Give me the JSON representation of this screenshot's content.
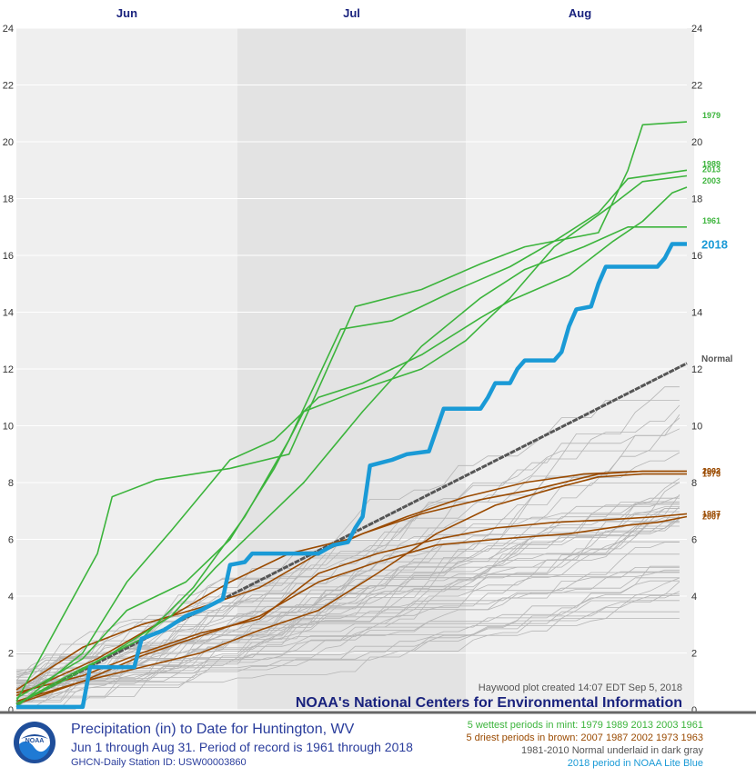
{
  "chart_data": {
    "type": "line",
    "title": "Precipitation (in) to Date for Huntington, WV",
    "subtitle": "Jun 1 through Aug 31. Period of record is 1961 through 2018",
    "station": "GHCN-Daily Station ID: USW00003860",
    "months": [
      "Jun",
      "Jul",
      "Aug"
    ],
    "ylim": [
      0,
      24
    ],
    "yticks": [
      "0",
      "2",
      "4",
      "6",
      "8",
      "10",
      "12",
      "14",
      "16",
      "18",
      "20",
      "22",
      "24"
    ],
    "x_range_days": [
      1,
      92
    ],
    "grid": true,
    "colors": {
      "wettest": "#3cb43c",
      "driest": "#9a4a00",
      "normal": "#555555",
      "current": "#1a9ad6",
      "background_year": "#b5b5b5",
      "title": "#1a237e"
    },
    "normal": {
      "label": "Normal",
      "points": [
        [
          1,
          0.2
        ],
        [
          92,
          12.2
        ]
      ]
    },
    "current_year": {
      "name": "2018",
      "points": [
        [
          1,
          0.1
        ],
        [
          10,
          0.1
        ],
        [
          11,
          1.5
        ],
        [
          17,
          1.5
        ],
        [
          18,
          2.5
        ],
        [
          21,
          2.8
        ],
        [
          24,
          3.3
        ],
        [
          26,
          3.5
        ],
        [
          29,
          3.9
        ],
        [
          30,
          5.1
        ],
        [
          32,
          5.2
        ],
        [
          33,
          5.5
        ],
        [
          42,
          5.5
        ],
        [
          44,
          5.8
        ],
        [
          46,
          5.9
        ],
        [
          47,
          6.4
        ],
        [
          48,
          6.8
        ],
        [
          49,
          8.6
        ],
        [
          52,
          8.8
        ],
        [
          54,
          9.0
        ],
        [
          57,
          9.1
        ],
        [
          59,
          10.6
        ],
        [
          64,
          10.6
        ],
        [
          65,
          11.0
        ],
        [
          66,
          11.5
        ],
        [
          68,
          11.5
        ],
        [
          69,
          12.0
        ],
        [
          70,
          12.3
        ],
        [
          74,
          12.3
        ],
        [
          75,
          12.6
        ],
        [
          76,
          13.5
        ],
        [
          77,
          14.1
        ],
        [
          79,
          14.2
        ],
        [
          80,
          15.0
        ],
        [
          81,
          15.6
        ],
        [
          88,
          15.6
        ],
        [
          89,
          15.9
        ],
        [
          90,
          16.4
        ],
        [
          92,
          16.4
        ]
      ]
    },
    "wettest": [
      {
        "name": "1979",
        "points": [
          [
            1,
            0.3
          ],
          [
            12,
            5.5
          ],
          [
            14,
            7.5
          ],
          [
            20,
            8.1
          ],
          [
            30,
            8.5
          ],
          [
            38,
            9.0
          ],
          [
            47,
            14.2
          ],
          [
            56,
            14.8
          ],
          [
            64,
            15.7
          ],
          [
            70,
            16.3
          ],
          [
            80,
            16.8
          ],
          [
            84,
            19.0
          ],
          [
            86,
            20.6
          ],
          [
            92,
            20.7
          ]
        ]
      },
      {
        "name": "1989",
        "points": [
          [
            1,
            0.2
          ],
          [
            8,
            1.2
          ],
          [
            18,
            2.5
          ],
          [
            25,
            4.3
          ],
          [
            32,
            6.8
          ],
          [
            38,
            9.5
          ],
          [
            45,
            13.4
          ],
          [
            52,
            13.7
          ],
          [
            60,
            14.7
          ],
          [
            68,
            15.6
          ],
          [
            74,
            16.5
          ],
          [
            80,
            17.5
          ],
          [
            84,
            18.7
          ],
          [
            92,
            19.0
          ]
        ]
      },
      {
        "name": "2013",
        "points": [
          [
            1,
            0.4
          ],
          [
            10,
            1.8
          ],
          [
            16,
            3.5
          ],
          [
            24,
            4.5
          ],
          [
            30,
            6.0
          ],
          [
            36,
            8.5
          ],
          [
            40,
            10.5
          ],
          [
            48,
            11.3
          ],
          [
            56,
            12.0
          ],
          [
            62,
            13.0
          ],
          [
            68,
            14.5
          ],
          [
            74,
            16.3
          ],
          [
            82,
            17.8
          ],
          [
            86,
            18.6
          ],
          [
            92,
            18.8
          ]
        ]
      },
      {
        "name": "2003",
        "points": [
          [
            1,
            0.1
          ],
          [
            10,
            2.0
          ],
          [
            16,
            4.5
          ],
          [
            22,
            6.3
          ],
          [
            30,
            8.8
          ],
          [
            36,
            9.5
          ],
          [
            42,
            11.0
          ],
          [
            48,
            11.5
          ],
          [
            56,
            12.5
          ],
          [
            64,
            13.8
          ],
          [
            68,
            14.4
          ],
          [
            76,
            15.3
          ],
          [
            82,
            16.5
          ],
          [
            86,
            17.2
          ],
          [
            90,
            18.2
          ],
          [
            92,
            18.4
          ]
        ]
      },
      {
        "name": "1961",
        "points": [
          [
            1,
            0.2
          ],
          [
            8,
            1.1
          ],
          [
            14,
            2.0
          ],
          [
            22,
            3.3
          ],
          [
            28,
            5.0
          ],
          [
            34,
            6.5
          ],
          [
            40,
            8.0
          ],
          [
            48,
            10.5
          ],
          [
            56,
            12.8
          ],
          [
            64,
            14.5
          ],
          [
            70,
            15.5
          ],
          [
            78,
            16.3
          ],
          [
            84,
            17.0
          ],
          [
            92,
            17.0
          ]
        ]
      }
    ],
    "driest": [
      {
        "name": "2007",
        "points": [
          [
            1,
            0.3
          ],
          [
            10,
            1.0
          ],
          [
            18,
            1.9
          ],
          [
            26,
            2.6
          ],
          [
            34,
            3.3
          ],
          [
            42,
            4.5
          ],
          [
            50,
            5.2
          ],
          [
            58,
            5.8
          ],
          [
            66,
            6.0
          ],
          [
            76,
            6.2
          ],
          [
            84,
            6.5
          ],
          [
            88,
            6.6
          ],
          [
            92,
            6.8
          ]
        ]
      },
      {
        "name": "1987",
        "points": [
          [
            1,
            0.6
          ],
          [
            10,
            1.2
          ],
          [
            18,
            2.0
          ],
          [
            26,
            2.7
          ],
          [
            34,
            3.2
          ],
          [
            42,
            4.8
          ],
          [
            50,
            5.5
          ],
          [
            58,
            6.0
          ],
          [
            66,
            6.4
          ],
          [
            74,
            6.6
          ],
          [
            82,
            6.7
          ],
          [
            88,
            6.8
          ],
          [
            92,
            6.9
          ]
        ]
      },
      {
        "name": "2002",
        "points": [
          [
            1,
            0.5
          ],
          [
            12,
            1.8
          ],
          [
            20,
            3.0
          ],
          [
            30,
            4.5
          ],
          [
            38,
            5.5
          ],
          [
            46,
            6.0
          ],
          [
            54,
            6.8
          ],
          [
            62,
            7.5
          ],
          [
            70,
            8.0
          ],
          [
            78,
            8.3
          ],
          [
            86,
            8.4
          ],
          [
            92,
            8.4
          ]
        ]
      },
      {
        "name": "1973",
        "points": [
          [
            1,
            0.2
          ],
          [
            10,
            1.0
          ],
          [
            18,
            1.5
          ],
          [
            26,
            2.0
          ],
          [
            34,
            2.8
          ],
          [
            42,
            3.5
          ],
          [
            50,
            4.8
          ],
          [
            58,
            6.2
          ],
          [
            66,
            7.2
          ],
          [
            74,
            7.8
          ],
          [
            80,
            8.2
          ],
          [
            86,
            8.3
          ],
          [
            92,
            8.3
          ]
        ]
      },
      {
        "name": "1963",
        "points": [
          [
            1,
            0.7
          ],
          [
            10,
            2.2
          ],
          [
            18,
            3.0
          ],
          [
            26,
            3.6
          ],
          [
            34,
            4.3
          ],
          [
            42,
            5.5
          ],
          [
            48,
            6.2
          ],
          [
            56,
            6.9
          ],
          [
            64,
            7.4
          ],
          [
            72,
            7.8
          ],
          [
            80,
            8.3
          ],
          [
            86,
            8.4
          ],
          [
            92,
            8.4
          ]
        ]
      }
    ]
  },
  "credit": "Haywood plot created 14:07 EDT Sep 5, 2018",
  "org": "NOAA's National Centers for Environmental Information",
  "logo_text": "NOAA",
  "legend": {
    "wettest": "5 wettest periods in mint: 1979 1989 2013 2003 1961",
    "driest": "5 driest periods in brown: 2007 1987 2002 1973 1963",
    "normal": "1981-2010 Normal underlaid in dark gray",
    "current": "2018 period in NOAA Lite Blue"
  }
}
